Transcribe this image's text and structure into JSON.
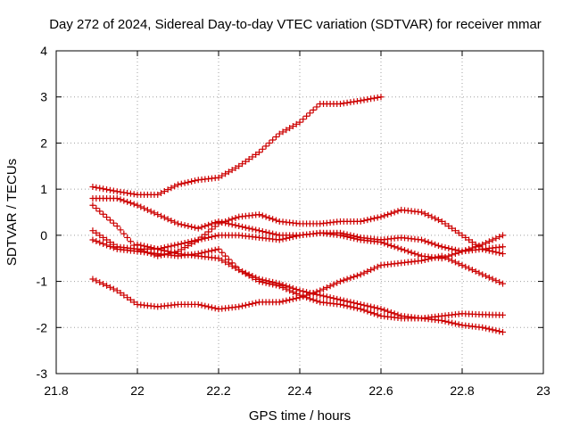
{
  "chart_data": {
    "type": "scatter",
    "title": "Day 272 of 2024, Sidereal Day-to-day VTEC variation (SDTVAR) for receiver mmar",
    "xlabel": "GPS time / hours",
    "ylabel": "SDTVAR / TECUs",
    "xlim": [
      21.8,
      23.0
    ],
    "ylim": [
      -3,
      4
    ],
    "xticks": [
      21.8,
      22.0,
      22.2,
      22.4,
      22.6,
      22.8,
      23.0
    ],
    "xtick_labels": [
      "21.8",
      "22",
      "22.2",
      "22.4",
      "22.6",
      "22.8",
      "23"
    ],
    "yticks": [
      -3,
      -2,
      -1,
      0,
      1,
      2,
      3,
      4
    ],
    "ytick_labels": [
      "-3",
      "-2",
      "-1",
      "0",
      "1",
      "2",
      "3",
      "4"
    ],
    "grid": true,
    "marker": "+",
    "color": "#cc0000",
    "series": [
      {
        "x": [
          21.89,
          21.95,
          22.0,
          22.05,
          22.1,
          22.15,
          22.2,
          22.25,
          22.3,
          22.35,
          22.4,
          22.45,
          22.5,
          22.55,
          22.6
        ],
        "y": [
          1.05,
          0.95,
          0.88,
          0.88,
          1.1,
          1.2,
          1.25,
          1.5,
          1.8,
          2.2,
          2.45,
          2.85,
          2.85,
          2.92,
          3.0
        ]
      },
      {
        "x": [
          21.89,
          21.95,
          22.0,
          22.05,
          22.1,
          22.15,
          22.2,
          22.25,
          22.3,
          22.35,
          22.4,
          22.45,
          22.5,
          22.55,
          22.6,
          22.65,
          22.7,
          22.75,
          22.8,
          22.85,
          22.9
        ],
        "y": [
          0.65,
          0.2,
          -0.3,
          -0.45,
          -0.35,
          -0.1,
          0.25,
          0.4,
          0.45,
          0.3,
          0.25,
          0.25,
          0.3,
          0.3,
          0.4,
          0.55,
          0.5,
          0.3,
          0.0,
          -0.3,
          -0.4
        ]
      },
      {
        "x": [
          21.89,
          21.95,
          22.0,
          22.05,
          22.1,
          22.15,
          22.2,
          22.25,
          22.3,
          22.35,
          22.4,
          22.45,
          22.5,
          22.55,
          22.6,
          22.65,
          22.7,
          22.75,
          22.8,
          22.85,
          22.9
        ],
        "y": [
          0.8,
          0.8,
          0.65,
          0.45,
          0.25,
          0.15,
          0.3,
          0.2,
          0.1,
          0.0,
          0.0,
          0.05,
          0.0,
          -0.1,
          -0.15,
          -0.3,
          -0.45,
          -0.5,
          -0.35,
          -0.2,
          0.0
        ]
      },
      {
        "x": [
          21.89,
          21.95,
          22.0,
          22.05,
          22.1,
          22.15,
          22.2,
          22.25,
          22.3,
          22.35,
          22.4,
          22.45,
          22.5,
          22.55,
          22.6,
          22.65,
          22.7,
          22.75,
          22.8,
          22.85,
          22.9
        ],
        "y": [
          0.1,
          -0.25,
          -0.3,
          -0.3,
          -0.2,
          -0.1,
          0.0,
          0.0,
          -0.05,
          -0.1,
          0.0,
          0.05,
          0.05,
          -0.05,
          -0.1,
          -0.05,
          -0.1,
          -0.25,
          -0.35,
          -0.3,
          -0.25
        ]
      },
      {
        "x": [
          21.89,
          21.95,
          22.0,
          22.05,
          22.1,
          22.15,
          22.2,
          22.25,
          22.3,
          22.35,
          22.4,
          22.45,
          22.5,
          22.55,
          22.6,
          22.65,
          22.7,
          22.75,
          22.8,
          22.85,
          22.9
        ],
        "y": [
          -0.1,
          -0.3,
          -0.35,
          -0.4,
          -0.45,
          -0.4,
          -0.3,
          -0.75,
          -1.0,
          -1.1,
          -1.3,
          -1.45,
          -1.5,
          -1.6,
          -1.75,
          -1.8,
          -1.8,
          -1.85,
          -1.95,
          -2.0,
          -2.1
        ]
      },
      {
        "x": [
          21.89,
          21.95,
          22.0,
          22.05,
          22.1,
          22.15,
          22.2,
          22.25,
          22.3,
          22.35,
          22.4,
          22.45,
          22.5,
          22.55,
          22.6,
          22.65,
          22.7,
          22.75,
          22.8,
          22.85,
          22.9
        ],
        "y": [
          -0.95,
          -1.2,
          -1.5,
          -1.55,
          -1.5,
          -1.5,
          -1.6,
          -1.55,
          -1.45,
          -1.45,
          -1.35,
          -1.2,
          -1.0,
          -0.85,
          -0.65,
          -0.6,
          -0.55,
          -0.45,
          -0.65,
          -0.85,
          -1.05
        ]
      },
      {
        "x": [
          22.0,
          22.05,
          22.1,
          22.15,
          22.2,
          22.25,
          22.3,
          22.35,
          22.4,
          22.45,
          22.5,
          22.55,
          22.6,
          22.65,
          22.7,
          22.75,
          22.8,
          22.85,
          22.9
        ],
        "y": [
          -0.2,
          -0.3,
          -0.4,
          -0.45,
          -0.5,
          -0.75,
          -0.95,
          -1.05,
          -1.2,
          -1.3,
          -1.4,
          -1.5,
          -1.6,
          -1.75,
          -1.8,
          -1.75,
          -1.7,
          -1.72,
          -1.73
        ]
      }
    ]
  }
}
